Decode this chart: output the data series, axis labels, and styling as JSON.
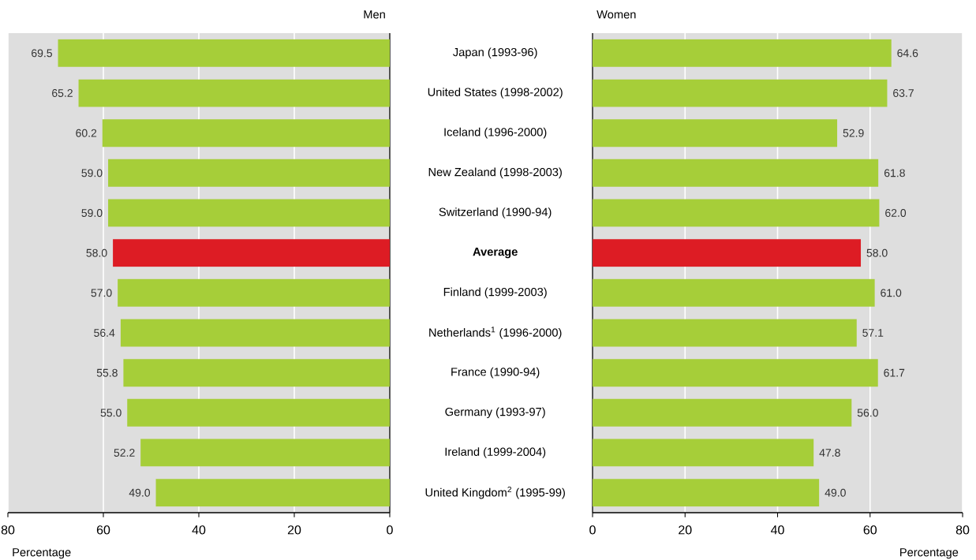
{
  "chart_data": [
    {
      "type": "bar",
      "orientation": "horizontal",
      "title": "Men",
      "xlabel": "Percentage",
      "categories": [
        "Japan (1993-96)",
        "United States (1998-2002)",
        "Iceland (1996-2000)",
        "New Zealand (1998-2003)",
        "Switzerland (1990-94)",
        "Average",
        "Finland (1999-2003)",
        "Netherlands$^{1}$ (1996-2000)",
        "France (1990-94)",
        "Germany (1993-97)",
        "Ireland (1999-2004)",
        "United Kingdom$^{2}$ (1995-99)"
      ],
      "values": [
        69.5,
        65.2,
        60.2,
        59.0,
        59.0,
        58.0,
        57.0,
        56.4,
        55.8,
        55.0,
        52.2,
        49.0
      ],
      "value_labels": [
        "69.5",
        "65.2",
        "60.2",
        "59.0",
        "59.0",
        "58.0",
        "57.0",
        "56.4",
        "55.8",
        "55.0",
        "52.2",
        "49.0"
      ],
      "colors": [
        "#a6ce39",
        "#a6ce39",
        "#a6ce39",
        "#a6ce39",
        "#a6ce39",
        "#dd1c24",
        "#a6ce39",
        "#a6ce39",
        "#a6ce39",
        "#a6ce39",
        "#a6ce39",
        "#a6ce39"
      ],
      "xlim": [
        80,
        0
      ],
      "xticks": [
        80,
        60,
        40,
        20,
        0
      ],
      "grid": "x"
    },
    {
      "type": "bar",
      "orientation": "horizontal",
      "title": "Women",
      "xlabel": "Percentage",
      "categories": [
        null,
        null,
        null,
        null,
        null,
        null,
        null,
        null,
        null,
        null,
        null,
        null
      ],
      "values": [
        64.6,
        63.7,
        52.9,
        61.8,
        62.0,
        58.0,
        61.0,
        57.1,
        61.7,
        56.0,
        47.8,
        49.0
      ],
      "value_labels": [
        "64.6",
        "63.7",
        "52.9",
        "61.8",
        "62.0",
        "58.0",
        "61.0",
        "57.1",
        "61.7",
        "56.0",
        "47.8",
        "49.0"
      ],
      "colors": [
        "#a6ce39",
        "#a6ce39",
        "#a6ce39",
        "#a6ce39",
        "#a6ce39",
        "#dd1c24",
        "#a6ce39",
        "#a6ce39",
        "#a6ce39",
        "#a6ce39",
        "#a6ce39",
        "#a6ce39"
      ],
      "xlim": [
        0,
        80
      ],
      "xticks": [
        0,
        20,
        40,
        60,
        80
      ],
      "grid": "x"
    }
  ]
}
